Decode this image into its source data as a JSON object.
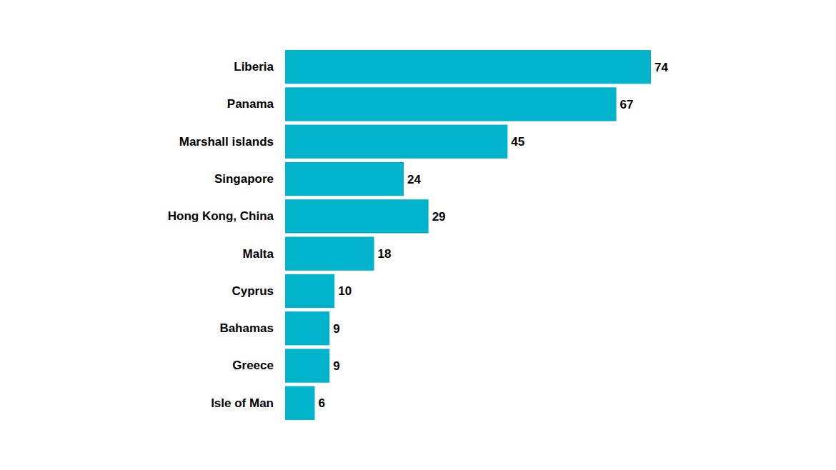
{
  "chart_data": {
    "type": "bar",
    "orientation": "horizontal",
    "categories": [
      "Liberia",
      "Panama",
      "Marshall islands",
      "Singapore",
      "Hong Kong, China",
      "Malta",
      "Cyprus",
      "Bahamas",
      "Greece",
      "Isle of Man"
    ],
    "values": [
      74,
      67,
      45,
      24,
      29,
      18,
      10,
      9,
      9,
      6
    ],
    "color": "#01b4cc",
    "xlim": [
      0,
      74
    ],
    "data_labels": true,
    "tick_labels": "y",
    "grid": false
  }
}
